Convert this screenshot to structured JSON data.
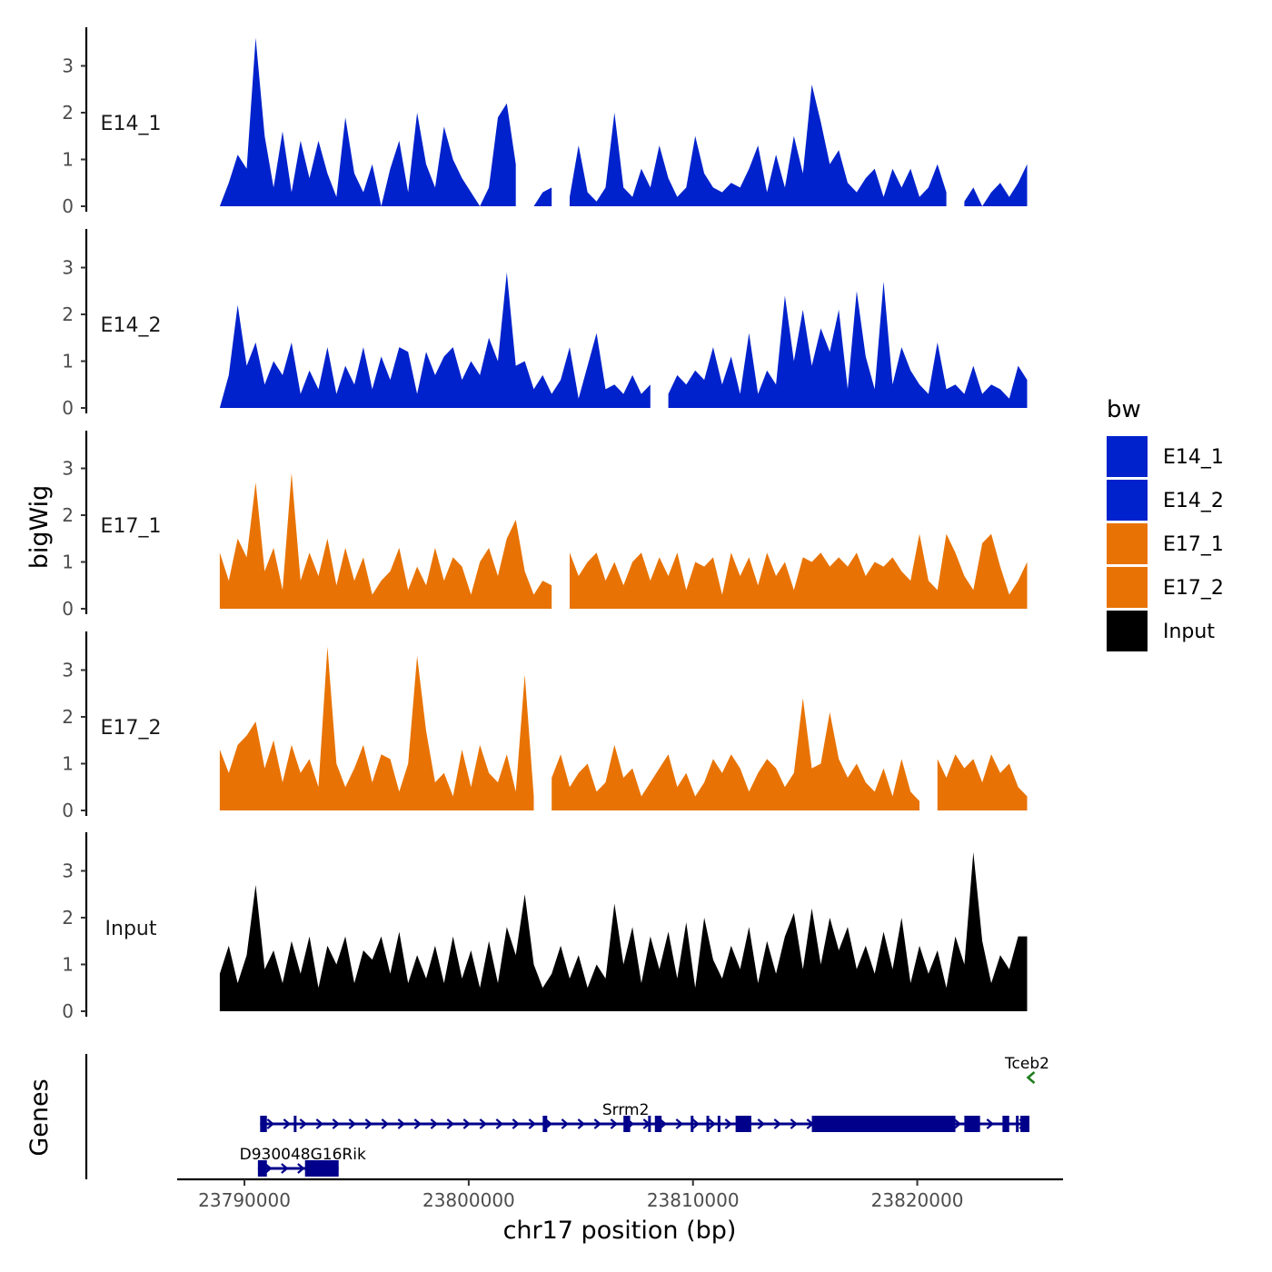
{
  "chart_data": {
    "type": "area",
    "title": "",
    "xlabel": "chr17 position (bp)",
    "ylabel": "bigWig",
    "genes_label": "Genes",
    "xlim": [
      23787000,
      23826500
    ],
    "ylim": [
      0,
      3.8
    ],
    "x_ticks": [
      23790000,
      23800000,
      23810000,
      23820000
    ],
    "x_tick_labels": [
      "23790000",
      "23800000",
      "23810000",
      "23820000"
    ],
    "y_ticks": [
      0,
      1,
      2,
      3
    ],
    "y_tick_labels": [
      "0",
      "1",
      "2",
      "3"
    ],
    "legend": {
      "title": "bw",
      "position": "right",
      "entries": [
        {
          "name": "E14_1",
          "color": "#0022cc"
        },
        {
          "name": "E14_2",
          "color": "#0022cc"
        },
        {
          "name": "E17_1",
          "color": "#e87304"
        },
        {
          "name": "E17_2",
          "color": "#e87304"
        },
        {
          "name": "Input",
          "color": "#000000"
        }
      ]
    },
    "x": [
      23788900,
      23789300,
      23789700,
      23790100,
      23790500,
      23790900,
      23791300,
      23791700,
      23792100,
      23792500,
      23792900,
      23793300,
      23793700,
      23794100,
      23794500,
      23794900,
      23795300,
      23795700,
      23796100,
      23796500,
      23796900,
      23797300,
      23797700,
      23798100,
      23798500,
      23798900,
      23799300,
      23799700,
      23800100,
      23800500,
      23800900,
      23801300,
      23801700,
      23802100,
      23802500,
      23802900,
      23803300,
      23803700,
      23804100,
      23804500,
      23804900,
      23805300,
      23805700,
      23806100,
      23806500,
      23806900,
      23807300,
      23807700,
      23808100,
      23808500,
      23808900,
      23809300,
      23809700,
      23810100,
      23810500,
      23810900,
      23811300,
      23811700,
      23812100,
      23812500,
      23812900,
      23813300,
      23813700,
      23814100,
      23814500,
      23814900,
      23815300,
      23815700,
      23816100,
      23816500,
      23816900,
      23817300,
      23817700,
      23818100,
      23818500,
      23818900,
      23819300,
      23819700,
      23820100,
      23820500,
      23820900,
      23821300,
      23821700,
      23822100,
      23822500,
      23822900,
      23823300,
      23823700,
      23824100,
      23824500,
      23824900
    ],
    "series": [
      {
        "name": "E14_1",
        "color": "#0022cc",
        "values": [
          0.0,
          0.5,
          1.1,
          0.8,
          3.6,
          1.5,
          0.4,
          1.6,
          0.3,
          1.4,
          0.6,
          1.4,
          0.7,
          0.2,
          1.9,
          0.7,
          0.3,
          0.9,
          0.0,
          0.8,
          1.4,
          0.3,
          2.0,
          0.9,
          0.4,
          1.7,
          1.0,
          0.6,
          0.3,
          0.0,
          0.4,
          1.9,
          2.2,
          0.9,
          null,
          0.0,
          0.3,
          0.4,
          null,
          0.2,
          1.3,
          0.3,
          0.1,
          0.4,
          2.0,
          0.4,
          0.2,
          0.8,
          0.4,
          1.3,
          0.6,
          0.2,
          0.4,
          1.5,
          0.7,
          0.4,
          0.3,
          0.5,
          0.4,
          0.8,
          1.3,
          0.3,
          1.1,
          0.4,
          1.5,
          0.7,
          2.6,
          1.8,
          0.9,
          1.2,
          0.5,
          0.3,
          0.6,
          0.8,
          0.2,
          0.8,
          0.4,
          0.8,
          0.2,
          0.4,
          0.9,
          0.3,
          null,
          0.1,
          0.4,
          0.0,
          0.3,
          0.5,
          0.2,
          0.5,
          0.9
        ]
      },
      {
        "name": "E14_2",
        "color": "#0022cc",
        "values": [
          0.0,
          0.7,
          2.2,
          0.9,
          1.4,
          0.5,
          1.0,
          0.7,
          1.4,
          0.3,
          0.8,
          0.4,
          1.3,
          0.3,
          0.9,
          0.5,
          1.3,
          0.4,
          1.1,
          0.6,
          1.3,
          1.2,
          0.3,
          1.2,
          0.7,
          1.1,
          1.3,
          0.6,
          1.0,
          0.7,
          1.5,
          1.0,
          2.9,
          0.9,
          1.0,
          0.4,
          0.7,
          0.3,
          0.6,
          1.3,
          0.2,
          0.9,
          1.6,
          0.4,
          0.5,
          0.3,
          0.7,
          0.3,
          0.5,
          null,
          0.3,
          0.7,
          0.5,
          0.8,
          0.6,
          1.3,
          0.5,
          1.1,
          0.3,
          1.6,
          0.3,
          0.8,
          0.5,
          2.4,
          1.0,
          2.1,
          0.9,
          1.7,
          1.2,
          2.1,
          0.4,
          2.5,
          1.1,
          0.4,
          2.7,
          0.5,
          1.3,
          0.8,
          0.5,
          0.3,
          1.4,
          0.4,
          0.5,
          0.3,
          0.9,
          0.3,
          0.5,
          0.4,
          0.2,
          0.9,
          0.6
        ]
      },
      {
        "name": "E17_1",
        "color": "#e87304",
        "values": [
          1.2,
          0.6,
          1.5,
          1.1,
          2.7,
          0.8,
          1.3,
          0.4,
          2.9,
          0.6,
          1.2,
          0.7,
          1.5,
          0.5,
          1.3,
          0.6,
          1.1,
          0.3,
          0.6,
          0.8,
          1.3,
          0.4,
          0.9,
          0.5,
          1.3,
          0.6,
          1.1,
          0.9,
          0.3,
          1.0,
          1.3,
          0.7,
          1.5,
          1.9,
          0.8,
          0.3,
          0.6,
          0.5,
          null,
          1.2,
          0.7,
          1.0,
          1.2,
          0.6,
          1.0,
          0.5,
          1.0,
          1.2,
          0.6,
          1.1,
          0.7,
          1.2,
          0.4,
          1.0,
          0.9,
          1.1,
          0.3,
          1.2,
          0.7,
          1.1,
          0.5,
          1.2,
          0.7,
          1.0,
          0.4,
          1.1,
          1.0,
          1.2,
          0.9,
          1.1,
          0.9,
          1.2,
          0.7,
          1.0,
          0.9,
          1.1,
          0.8,
          0.6,
          1.6,
          0.6,
          0.4,
          1.6,
          1.2,
          0.7,
          0.4,
          1.4,
          1.6,
          0.9,
          0.3,
          0.6,
          1.0
        ]
      },
      {
        "name": "E17_2",
        "color": "#e87304",
        "values": [
          1.3,
          0.8,
          1.4,
          1.6,
          1.9,
          0.9,
          1.5,
          0.6,
          1.4,
          0.8,
          1.1,
          0.5,
          3.5,
          1.0,
          0.5,
          0.9,
          1.4,
          0.6,
          1.2,
          1.1,
          0.4,
          1.0,
          3.3,
          1.7,
          0.6,
          0.8,
          0.3,
          1.3,
          0.5,
          1.4,
          0.8,
          0.6,
          1.2,
          0.4,
          2.9,
          0.3,
          null,
          0.7,
          1.2,
          0.5,
          0.8,
          1.0,
          0.4,
          0.6,
          1.4,
          0.7,
          0.9,
          0.3,
          0.6,
          0.9,
          1.2,
          0.5,
          0.8,
          0.3,
          0.6,
          1.1,
          0.8,
          1.2,
          0.9,
          0.4,
          0.8,
          1.1,
          0.9,
          0.5,
          0.8,
          2.4,
          0.9,
          1.0,
          2.1,
          1.1,
          0.7,
          1.0,
          0.6,
          0.4,
          0.9,
          0.3,
          1.1,
          0.4,
          0.2,
          null,
          1.1,
          0.7,
          1.2,
          0.9,
          1.1,
          0.6,
          1.2,
          0.8,
          1.0,
          0.5,
          0.3
        ]
      },
      {
        "name": "Input",
        "color": "#000000",
        "values": [
          0.8,
          1.4,
          0.6,
          1.2,
          2.7,
          0.9,
          1.3,
          0.6,
          1.5,
          0.8,
          1.6,
          0.5,
          1.4,
          1.0,
          1.6,
          0.6,
          1.3,
          1.1,
          1.6,
          0.8,
          1.7,
          0.6,
          1.2,
          0.7,
          1.4,
          0.6,
          1.6,
          0.7,
          1.3,
          0.5,
          1.5,
          0.6,
          1.8,
          1.2,
          2.5,
          1.0,
          0.5,
          0.8,
          1.4,
          0.7,
          1.2,
          0.5,
          1.0,
          0.7,
          2.3,
          1.0,
          1.8,
          0.6,
          1.6,
          0.9,
          1.7,
          0.7,
          1.9,
          0.5,
          2.0,
          1.1,
          0.7,
          1.4,
          0.9,
          1.8,
          0.6,
          1.5,
          0.8,
          1.6,
          2.1,
          0.9,
          2.2,
          1.0,
          2.0,
          1.3,
          1.8,
          0.9,
          1.4,
          0.8,
          1.7,
          0.9,
          2.0,
          0.6,
          1.4,
          0.8,
          1.3,
          0.5,
          1.6,
          1.0,
          3.4,
          1.5,
          0.6,
          1.2,
          0.9,
          1.6,
          1.6
        ]
      }
    ],
    "genes": [
      {
        "name": "Srrm2",
        "row": 1,
        "strand": "+",
        "color": "#00008b",
        "start": 23790700,
        "end": 23825000,
        "exons": [
          [
            23790700,
            23791000
          ],
          [
            23792200,
            23792300
          ],
          [
            23803300,
            23803500
          ],
          [
            23806900,
            23807200
          ],
          [
            23808000,
            23808100
          ],
          [
            23808300,
            23808600
          ],
          [
            23809900,
            23810000
          ],
          [
            23810600,
            23810700
          ],
          [
            23811100,
            23811200
          ],
          [
            23811900,
            23812600
          ],
          [
            23815300,
            23821700
          ],
          [
            23822100,
            23822800
          ],
          [
            23823800,
            23824100
          ],
          [
            23824400,
            23824500
          ],
          [
            23824600,
            23825000
          ]
        ],
        "label_x": 23807000
      },
      {
        "name": "Tceb2",
        "row": 0,
        "strand": "-",
        "color": "#1f7f1f",
        "start": 23824700,
        "end": 23825200,
        "exons": [],
        "label_x": 23824900
      },
      {
        "name": "D930048G16Rik",
        "row": 2,
        "strand": "+",
        "color": "#00008b",
        "start": 23790600,
        "end": 23794200,
        "exons": [
          [
            23790600,
            23791000
          ],
          [
            23792700,
            23794200
          ]
        ],
        "label_x": 23792600
      }
    ]
  }
}
